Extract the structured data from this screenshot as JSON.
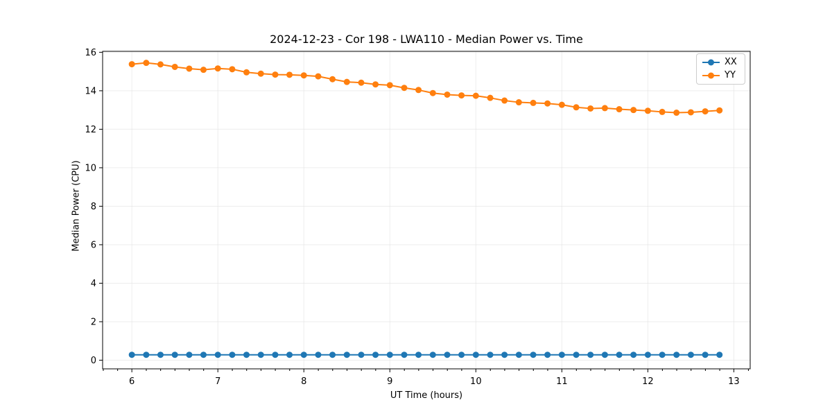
{
  "chart_data": {
    "type": "line",
    "title": "2024-12-23 - Cor 198 - LWA110 - Median Power vs. Time",
    "xlabel": "UT Time (hours)",
    "ylabel": "Median Power (CPU)",
    "xlim": [
      5.66,
      13.19
    ],
    "ylim": [
      -0.45,
      16.05
    ],
    "xticks": [
      6,
      7,
      8,
      9,
      10,
      11,
      12,
      13
    ],
    "yticks": [
      0,
      2,
      4,
      6,
      8,
      10,
      12,
      14,
      16
    ],
    "minor_x_step": 0.1667,
    "grid": true,
    "grid_color": "#e0e0e0",
    "spine_color": "#000000",
    "legend_position": "upper right",
    "x": [
      6.0,
      6.167,
      6.333,
      6.5,
      6.667,
      6.833,
      7.0,
      7.167,
      7.333,
      7.5,
      7.667,
      7.833,
      8.0,
      8.167,
      8.333,
      8.5,
      8.667,
      8.833,
      9.0,
      9.167,
      9.333,
      9.5,
      9.667,
      9.833,
      10.0,
      10.167,
      10.333,
      10.5,
      10.667,
      10.833,
      11.0,
      11.167,
      11.333,
      11.5,
      11.667,
      11.833,
      12.0,
      12.167,
      12.333,
      12.5,
      12.667,
      12.833
    ],
    "series": [
      {
        "name": "XX",
        "color": "#1f77b4",
        "values": [
          0.28,
          0.28,
          0.28,
          0.28,
          0.28,
          0.28,
          0.28,
          0.28,
          0.28,
          0.28,
          0.28,
          0.28,
          0.28,
          0.28,
          0.28,
          0.28,
          0.28,
          0.28,
          0.28,
          0.28,
          0.28,
          0.28,
          0.28,
          0.28,
          0.28,
          0.28,
          0.28,
          0.28,
          0.28,
          0.28,
          0.28,
          0.28,
          0.28,
          0.28,
          0.28,
          0.28,
          0.28,
          0.28,
          0.28,
          0.28,
          0.28,
          0.28
        ]
      },
      {
        "name": "YY",
        "color": "#ff7f0e",
        "values": [
          15.38,
          15.45,
          15.37,
          15.24,
          15.15,
          15.09,
          15.16,
          15.12,
          14.96,
          14.89,
          14.84,
          14.83,
          14.8,
          14.75,
          14.6,
          14.46,
          14.42,
          14.33,
          14.29,
          14.15,
          14.04,
          13.88,
          13.8,
          13.76,
          13.74,
          13.63,
          13.49,
          13.4,
          13.37,
          13.34,
          13.27,
          13.14,
          13.08,
          13.1,
          13.04,
          13.0,
          12.96,
          12.9,
          12.86,
          12.88,
          12.93,
          12.98
        ]
      }
    ]
  }
}
